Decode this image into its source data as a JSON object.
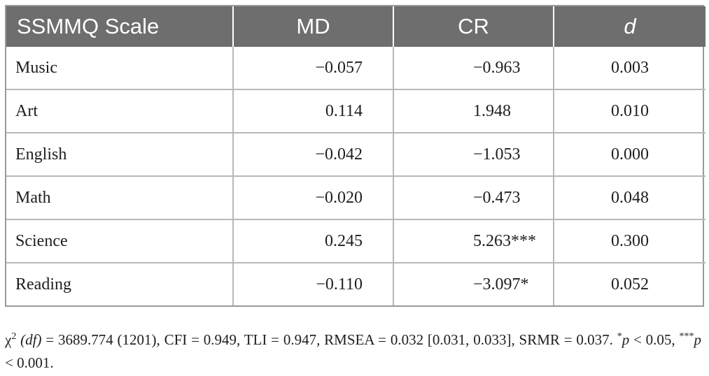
{
  "table": {
    "headers": [
      "SSMMQ Scale",
      "MD",
      "CR",
      "d"
    ],
    "rows": [
      {
        "scale": "Music",
        "md": "−0.057",
        "cr": "−0.963",
        "d": "0.003"
      },
      {
        "scale": "Art",
        "md": "0.114",
        "cr": "1.948",
        "d": "0.010"
      },
      {
        "scale": "English",
        "md": "−0.042",
        "cr": "−1.053",
        "d": "0.000"
      },
      {
        "scale": "Math",
        "md": "−0.020",
        "cr": "−0.473",
        "d": "0.048"
      },
      {
        "scale": "Science",
        "md": "0.245",
        "cr": "5.263***",
        "d": "0.300"
      },
      {
        "scale": "Reading",
        "md": "−0.110",
        "cr": "−3.097*",
        "d": "0.052"
      }
    ]
  },
  "note": {
    "chi_symbol": "χ",
    "chi_sup": "2",
    "df_label": "(df)",
    "line1_rest": " = 3689.774 (1201), CFI = 0.949, TLI = 0.947, RMSEA = 0.032 [0.031, 0.033], SRMR = 0.037. ",
    "sig1_star": "*",
    "sig1_p": "p",
    "sig1_rest": " < 0.05, ",
    "sig2_star": "***",
    "sig2_p": "p",
    "sig2_rest": " < 0.001."
  }
}
